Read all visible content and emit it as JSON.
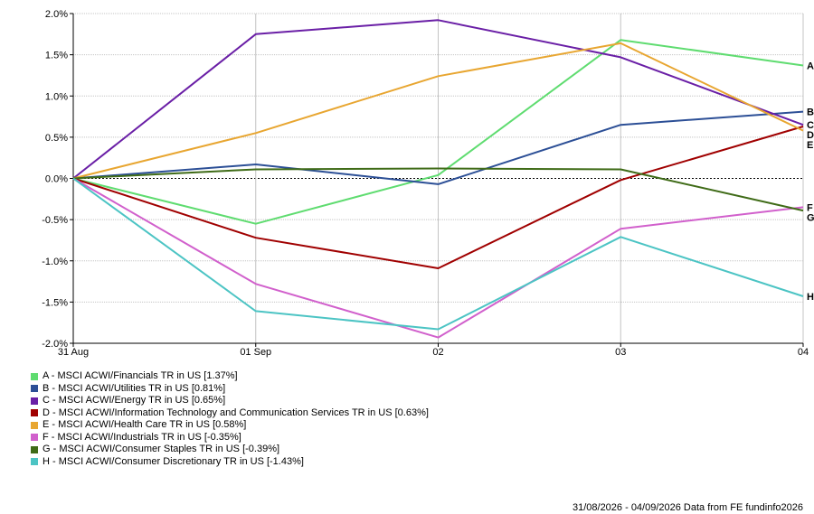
{
  "chart_data": {
    "type": "line",
    "x": [
      "31 Aug",
      "01 Sep",
      "02",
      "03",
      "04"
    ],
    "yticks": [
      "2.0%",
      "1.5%",
      "1.0%",
      "0.5%",
      "0.0%",
      "-0.5%",
      "-1.0%",
      "-1.5%",
      "-2.0%"
    ],
    "ylim": [
      -2.0,
      2.0
    ],
    "y_unit": "%",
    "grid": true,
    "legend_position": "bottom-left",
    "series": [
      {
        "letter": "A",
        "name": "A - MSCI ACWI/Financials TR in US [1.37%]",
        "color": "#5fdc70",
        "values": [
          0.0,
          -0.55,
          0.04,
          1.68,
          1.37
        ]
      },
      {
        "letter": "B",
        "name": "B - MSCI ACWI/Utilities TR in US [0.81%]",
        "color": "#2c4f96",
        "values": [
          0.0,
          0.17,
          -0.07,
          0.65,
          0.81
        ]
      },
      {
        "letter": "C",
        "name": "C - MSCI ACWI/Energy TR in US [0.65%]",
        "color": "#6a1fa6",
        "values": [
          0.0,
          1.75,
          1.92,
          1.47,
          0.65
        ]
      },
      {
        "letter": "D",
        "name": "D - MSCI ACWI/Information Technology and Communication Services TR in US [0.63%]",
        "color": "#a00000",
        "values": [
          0.0,
          -0.72,
          -1.09,
          -0.02,
          0.63
        ]
      },
      {
        "letter": "E",
        "name": "E - MSCI ACWI/Health Care TR in US [0.58%]",
        "color": "#e8a631",
        "values": [
          0.0,
          0.55,
          1.24,
          1.64,
          0.58
        ]
      },
      {
        "letter": "F",
        "name": "F - MSCI ACWI/Industrials TR in US [-0.35%]",
        "color": "#d160cc",
        "values": [
          0.0,
          -1.28,
          -1.93,
          -0.61,
          -0.35
        ]
      },
      {
        "letter": "G",
        "name": "G - MSCI ACWI/Consumer Staples TR in US [-0.39%]",
        "color": "#3f6b17",
        "values": [
          0.0,
          0.11,
          0.12,
          0.11,
          -0.39
        ]
      },
      {
        "letter": "H",
        "name": "H - MSCI ACWI/Consumer Discretionary TR in US [-1.43%]",
        "color": "#4cc4c4",
        "values": [
          0.0,
          -1.61,
          -1.83,
          -0.71,
          -1.43
        ]
      }
    ]
  },
  "footer": "31/08/2026 - 04/09/2026 Data from FE fundinfo2026"
}
